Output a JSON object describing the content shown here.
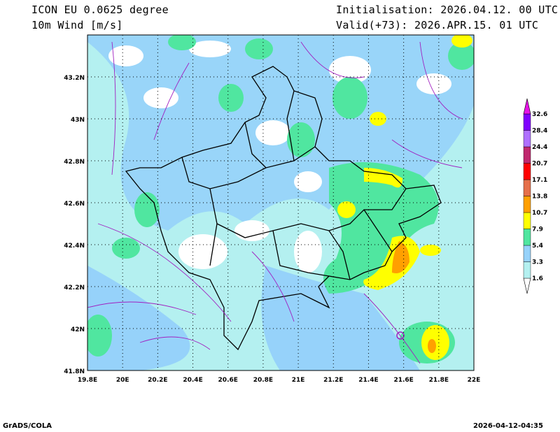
{
  "header": {
    "model": "ICON EU 0.0625 degree",
    "variable": "10m Wind [m/s]",
    "init": "Initialisation: 2026.04.12. 00 UTC",
    "valid": "Valid(+73): 2026.APR.15. 01 UTC"
  },
  "map": {
    "lon_range": [
      19.8,
      22.0
    ],
    "lat_range": [
      41.8,
      43.4
    ],
    "lon_ticks": [
      "19.8E",
      "20E",
      "20.2E",
      "20.4E",
      "20.6E",
      "20.8E",
      "21E",
      "21.2E",
      "21.4E",
      "21.6E",
      "21.8E",
      "22E"
    ],
    "lat_ticks": [
      "41.8N",
      "42N",
      "42.2N",
      "42.4N",
      "42.6N",
      "42.8N",
      "43N",
      "43.2N"
    ]
  },
  "colorbar": {
    "labels": [
      "1.6",
      "3.3",
      "5.4",
      "7.9",
      "10.7",
      "13.8",
      "17.1",
      "20.7",
      "24.4",
      "28.4",
      "32.6"
    ],
    "colors": [
      "#ffffff",
      "#b4f0f0",
      "#96d2fa",
      "#50e6a0",
      "#ffff00",
      "#ffa000",
      "#e6704b",
      "#ff0000",
      "#c0286e",
      "#b070ff",
      "#8000ff",
      "#e614e6"
    ]
  },
  "footer": {
    "left": "GrADS/COLA",
    "right": "2026-04-12-04:35"
  }
}
